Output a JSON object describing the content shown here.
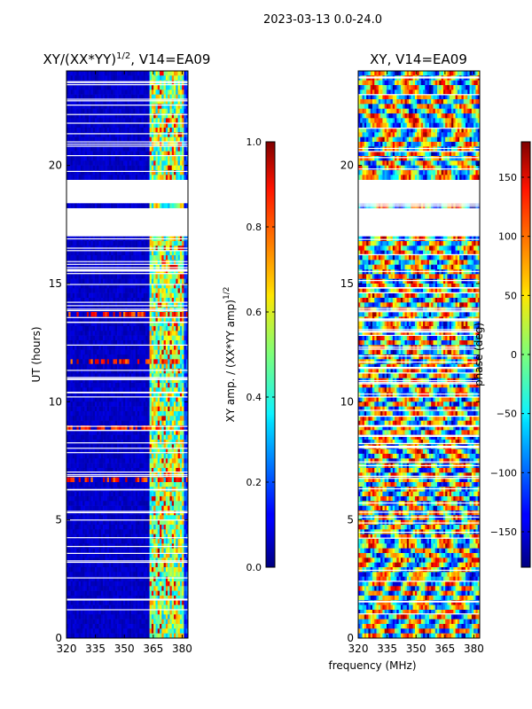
{
  "header": {
    "date_range": "2023-03-13 0.0-24.0"
  },
  "chart_data": [
    {
      "type": "heatmap",
      "title": "XY/(XX*YY)^1/2, V14=EA09",
      "title_main": "XY/(XX*YY)",
      "title_sup": "1/2",
      "title_tail": ", V14=EA09",
      "xlabel": "",
      "ylabel": "UT (hours)",
      "xlim": [
        320,
        383
      ],
      "ylim": [
        0,
        24
      ],
      "x_ticks": [
        320,
        335,
        350,
        365,
        380
      ],
      "y_ticks": [
        0,
        5,
        10,
        15,
        20
      ],
      "colorbar": {
        "label": "XY amp. / (XX*YY amp)^1/2",
        "label_main": "XY amp. / (XX*YY amp)",
        "label_sup": "1/2",
        "range": [
          0.0,
          1.0
        ],
        "ticks": [
          "0.0",
          "0.2",
          "0.4",
          "0.6",
          "0.8",
          "1.0"
        ],
        "colormap": "jet"
      },
      "empty_ut_ranges": [
        [
          17.0,
          18.1
        ],
        [
          18.5,
          19.3
        ]
      ],
      "high_amplitude_channels_MHz": [
        363,
        378
      ]
    },
    {
      "type": "heatmap",
      "title": "XY, V14=EA09",
      "xlabel": "frequency (MHz)",
      "ylabel": "",
      "xlim": [
        320,
        383
      ],
      "ylim": [
        0,
        24
      ],
      "x_ticks": [
        320,
        335,
        350,
        365,
        380
      ],
      "y_ticks": [
        0,
        5,
        10,
        15,
        20
      ],
      "colorbar": {
        "label": "phase (deg)",
        "range": [
          -180,
          180
        ],
        "ticks": [
          "−150",
          "−100",
          "−50",
          "0",
          "50",
          "100",
          "150"
        ],
        "colormap": "jet"
      },
      "empty_ut_ranges": [
        [
          17.0,
          18.1
        ],
        [
          18.5,
          19.3
        ]
      ]
    }
  ]
}
